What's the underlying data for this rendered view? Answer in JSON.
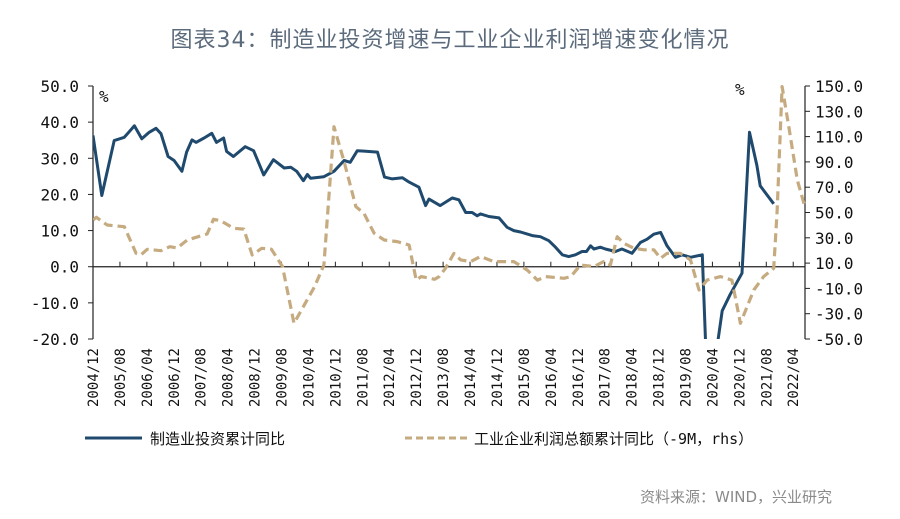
{
  "title": "图表34：制造业投资增速与工业企业利润增速变化情况",
  "source": "资料来源：WIND，兴业研究",
  "chart_data": {
    "type": "line",
    "title": "图表34：制造业投资增速与工业企业利润增速变化情况",
    "x_unit": "months since 2004/12",
    "x_tick_labels": [
      "2004/12",
      "2005/08",
      "2006/04",
      "2006/12",
      "2007/08",
      "2008/04",
      "2008/12",
      "2009/08",
      "2010/04",
      "2010/12",
      "2011/08",
      "2012/04",
      "2012/12",
      "2013/08",
      "2014/04",
      "2014/12",
      "2015/08",
      "2016/04",
      "2016/12",
      "2017/08",
      "2018/04",
      "2018/12",
      "2019/08",
      "2020/04",
      "2020/12",
      "2021/08",
      "2022/04"
    ],
    "xlim": [
      0,
      211.5
    ],
    "left_axis": {
      "unit": "%",
      "ylim": [
        -20,
        50
      ],
      "ticks": [
        "50.0",
        "40.0",
        "30.0",
        "20.0",
        "10.0",
        "0.0",
        "-10.0",
        "-20.0"
      ]
    },
    "right_axis": {
      "unit": "%",
      "ylim": [
        -50,
        150
      ],
      "ticks": [
        "150.0",
        "130.0",
        "110.0",
        "90.0",
        "70.0",
        "50.0",
        "30.0",
        "10.0",
        "-10.0",
        "-30.0",
        "-50.0"
      ]
    },
    "series": [
      {
        "name": "制造业投资累计同比",
        "axis": "left",
        "color": "#1f4a6e",
        "style": "solid",
        "points": [
          [
            0,
            36.3
          ],
          [
            2.6,
            19.7
          ],
          [
            6.3,
            34.9
          ],
          [
            9.3,
            35.8
          ],
          [
            12.3,
            39
          ],
          [
            14.5,
            35.4
          ],
          [
            16.7,
            37.2
          ],
          [
            18.7,
            38.3
          ],
          [
            20.2,
            36.8
          ],
          [
            22.3,
            30.5
          ],
          [
            24.1,
            29.4
          ],
          [
            26.4,
            26.4
          ],
          [
            27.8,
            31.7
          ],
          [
            29.4,
            35.1
          ],
          [
            30.6,
            34.4
          ],
          [
            33,
            35.6
          ],
          [
            35.3,
            36.9
          ],
          [
            36.7,
            34.4
          ],
          [
            38.8,
            35.6
          ],
          [
            39.7,
            31.9
          ],
          [
            41.7,
            30.5
          ],
          [
            45.2,
            33.2
          ],
          [
            47.7,
            32.1
          ],
          [
            50.7,
            25.4
          ],
          [
            53.6,
            29.6
          ],
          [
            56.8,
            27.3
          ],
          [
            58.8,
            27.5
          ],
          [
            60.5,
            26.4
          ],
          [
            62.5,
            23.8
          ],
          [
            63.7,
            25.5
          ],
          [
            64.6,
            24.5
          ],
          [
            68.6,
            24.9
          ],
          [
            71.6,
            26.4
          ],
          [
            74.6,
            29.4
          ],
          [
            76.4,
            28.9
          ],
          [
            78.5,
            32.1
          ],
          [
            80.5,
            32
          ],
          [
            84.5,
            31.7
          ],
          [
            86.6,
            24.8
          ],
          [
            88.9,
            24.3
          ],
          [
            91.9,
            24.6
          ],
          [
            93.9,
            23.4
          ],
          [
            96.8,
            22
          ],
          [
            98.8,
            16.9
          ],
          [
            99.8,
            18.7
          ],
          [
            103.1,
            16.9
          ],
          [
            106.7,
            19
          ],
          [
            108.7,
            18.5
          ],
          [
            110.7,
            15
          ],
          [
            112.6,
            15
          ],
          [
            114.1,
            14.1
          ],
          [
            115.1,
            14.6
          ],
          [
            117.6,
            13.9
          ],
          [
            120.6,
            13.5
          ],
          [
            123,
            10.9
          ],
          [
            125,
            10
          ],
          [
            127,
            9.6
          ],
          [
            130.5,
            8.6
          ],
          [
            132.9,
            8.3
          ],
          [
            135.4,
            7.2
          ],
          [
            137.4,
            5.4
          ],
          [
            139.4,
            3.3
          ],
          [
            141.3,
            2.8
          ],
          [
            143.3,
            3.3
          ],
          [
            145.3,
            4.2
          ],
          [
            146.6,
            4.2
          ],
          [
            147.8,
            5.8
          ],
          [
            148.8,
            4.9
          ],
          [
            150.7,
            5.4
          ],
          [
            152.2,
            4.9
          ],
          [
            155.2,
            4.2
          ],
          [
            157.1,
            4.9
          ],
          [
            160.1,
            3.7
          ],
          [
            162.6,
            6.7
          ],
          [
            164.6,
            7.6
          ],
          [
            166.6,
            9
          ],
          [
            168.6,
            9.5
          ],
          [
            170.5,
            5.8
          ],
          [
            173,
            2.6
          ],
          [
            175,
            3.3
          ],
          [
            177.5,
            2.6
          ],
          [
            181,
            3.3
          ],
          [
            182.4,
            -31.5
          ],
          [
            184.9,
            -25.2
          ],
          [
            186.9,
            -12.2
          ],
          [
            189.3,
            -7.6
          ],
          [
            192.8,
            -1.8
          ],
          [
            195,
            37.2
          ],
          [
            197.2,
            28
          ],
          [
            198.2,
            22.4
          ],
          [
            202.2,
            17.4
          ]
        ]
      },
      {
        "name": "工业企业利润总额累计同比（-9M，rhs）",
        "axis": "right",
        "color": "#c6ab80",
        "style": "dashed",
        "points": [
          [
            0,
            44.1
          ],
          [
            1,
            46.2
          ],
          [
            4.2,
            40.1
          ],
          [
            9.3,
            38.8
          ],
          [
            12.8,
            17.7
          ],
          [
            14.2,
            16.4
          ],
          [
            16.1,
            20.9
          ],
          [
            20.2,
            19.8
          ],
          [
            22.8,
            23
          ],
          [
            25,
            21.9
          ],
          [
            28,
            28.3
          ],
          [
            33.9,
            33
          ],
          [
            35.8,
            44.6
          ],
          [
            37.9,
            43.5
          ],
          [
            41.8,
            37.5
          ],
          [
            44.8,
            36.9
          ],
          [
            47.3,
            16.4
          ],
          [
            50.1,
            21.7
          ],
          [
            53,
            21
          ],
          [
            56.3,
            7.2
          ],
          [
            59.7,
            -37.6
          ],
          [
            65.8,
            -8.7
          ],
          [
            68.6,
            8.5
          ],
          [
            71.6,
            117.8
          ],
          [
            74.6,
            90.2
          ],
          [
            78.1,
            54.6
          ],
          [
            80.5,
            49.3
          ],
          [
            83.5,
            33.6
          ],
          [
            86.5,
            28.3
          ],
          [
            90.4,
            27
          ],
          [
            93.9,
            24.3
          ],
          [
            96,
            -3.4
          ],
          [
            97.5,
            -0.7
          ],
          [
            101.5,
            -2.8
          ],
          [
            102.8,
            -0.7
          ],
          [
            104.7,
            5.9
          ],
          [
            107.2,
            17.7
          ],
          [
            109.2,
            12.5
          ],
          [
            112.2,
            11.2
          ],
          [
            115.1,
            15.2
          ],
          [
            119.1,
            11.2
          ],
          [
            125,
            11.2
          ],
          [
            129,
            4.5
          ],
          [
            132,
            -3.4
          ],
          [
            134.5,
            -0.7
          ],
          [
            139.9,
            -2
          ],
          [
            141.9,
            -0.7
          ],
          [
            144.8,
            8.5
          ],
          [
            148.8,
            7.2
          ],
          [
            151.7,
            11.2
          ],
          [
            153.7,
            8.5
          ],
          [
            155.7,
            30.9
          ],
          [
            157.7,
            25.6
          ],
          [
            160.7,
            21.7
          ],
          [
            163.7,
            20.5
          ],
          [
            166.6,
            20.5
          ],
          [
            168.6,
            13.8
          ],
          [
            170.5,
            17.7
          ],
          [
            174.5,
            17.7
          ],
          [
            177.5,
            12.5
          ],
          [
            180,
            -11.3
          ],
          [
            182.4,
            -3.4
          ],
          [
            186.4,
            -0.7
          ],
          [
            189.8,
            -3.4
          ],
          [
            192.3,
            -37.6
          ],
          [
            196.3,
            -11.3
          ],
          [
            199.2,
            -0.7
          ],
          [
            202.2,
            5.9
          ],
          [
            203.2,
            50.6
          ],
          [
            204.7,
            149.5
          ],
          [
            206.7,
            117.8
          ],
          [
            209.2,
            75.7
          ],
          [
            211.6,
            53.3
          ]
        ]
      }
    ],
    "legend": [
      "制造业投资累计同比",
      "工业企业利润总额累计同比（-9M，rhs）"
    ],
    "legend_position": "bottom",
    "grid": false
  }
}
